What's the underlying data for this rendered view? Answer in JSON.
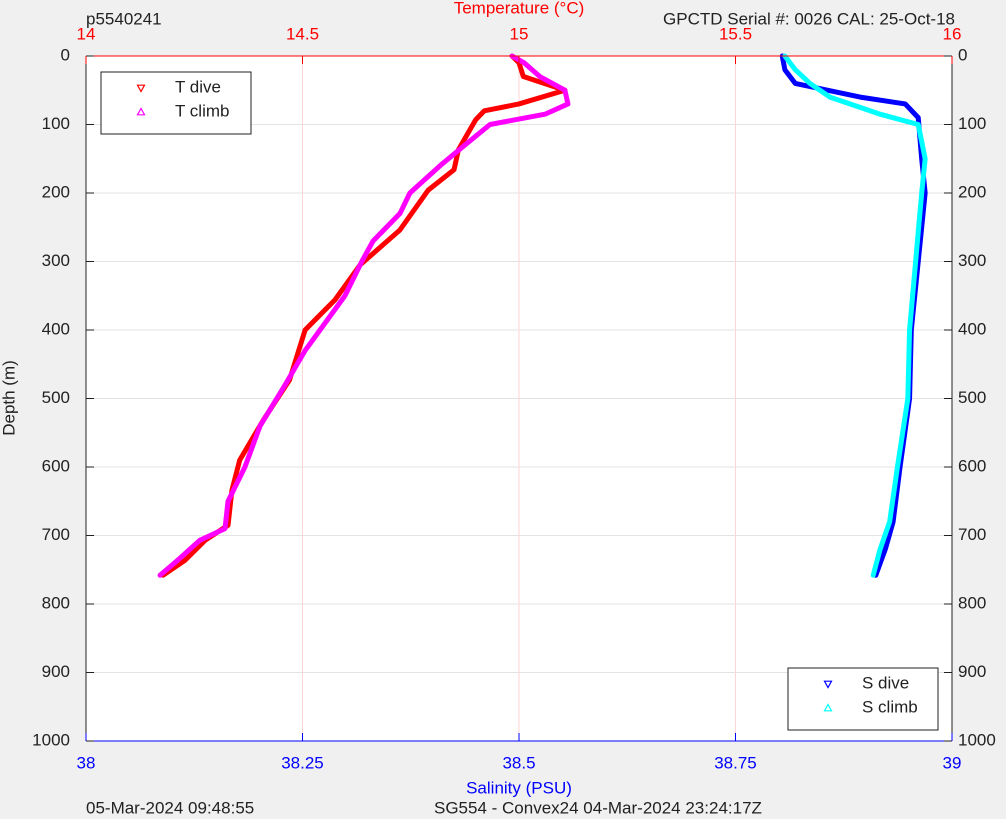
{
  "chart_data": {
    "type": "scatter",
    "title": "p5540241",
    "subtitle": "GPCTD Serial #: 0026 CAL: 25-Oct-18",
    "x_label": "Temperature (°C)",
    "x2_label": "Salinity (PSU)",
    "y_label": "Depth (m)",
    "footer_left": "05-Mar-2024 09:48:55",
    "footer_right": "SG554 - Convex24 04-Mar-2024 23:24:17Z",
    "xlim": [
      14,
      16
    ],
    "xticks": [
      14,
      14.5,
      15,
      15.5,
      16
    ],
    "x_color": "#ff0000",
    "x2lim": [
      38,
      39
    ],
    "x2ticks": [
      38,
      38.25,
      38.5,
      38.75,
      39
    ],
    "x2_color": "#0000ff",
    "ylim": [
      1000,
      0
    ],
    "yticks": [
      0,
      100,
      200,
      300,
      400,
      500,
      600,
      700,
      800,
      900,
      1000
    ],
    "grid": true,
    "series": [
      {
        "name": "T dive",
        "color": "#ff0000",
        "marker": "down",
        "axis": "x",
        "legend": "upper-left",
        "x": [
          14.984,
          15.0,
          15.01,
          15.106,
          15.0,
          14.92,
          14.9,
          14.86,
          14.85,
          14.79,
          14.725,
          14.633,
          14.575,
          14.506,
          14.47,
          14.41,
          14.355,
          14.337,
          14.328,
          14.275,
          14.229,
          14.178
        ],
        "values": [
          0,
          10,
          30,
          50,
          70,
          80,
          93,
          137,
          166,
          196,
          254,
          305,
          356,
          400,
          473,
          531,
          590,
          634,
          685,
          707,
          736,
          758
        ]
      },
      {
        "name": "T climb",
        "color": "#ff00ff",
        "marker": "up",
        "axis": "x",
        "legend": "upper-left",
        "x": [
          14.171,
          14.212,
          14.263,
          14.321,
          14.328,
          14.367,
          14.402,
          14.46,
          14.506,
          14.552,
          14.598,
          14.637,
          14.663,
          14.725,
          14.748,
          14.818,
          14.875,
          14.933,
          15.06,
          15.113,
          15.106,
          15.048,
          15.012,
          14.984
        ],
        "values": [
          758,
          736,
          707,
          690,
          650,
          600,
          540,
          480,
          430,
          390,
          350,
          300,
          270,
          230,
          200,
          160,
          130,
          100,
          85,
          70,
          50,
          30,
          10,
          0
        ]
      },
      {
        "name": "S dive",
        "color": "#0000ff",
        "marker": "down",
        "axis": "x2",
        "legend": "lower-right",
        "x": [
          38.804,
          38.807,
          38.819,
          38.894,
          38.946,
          38.961,
          38.965,
          38.969,
          38.965,
          38.961,
          38.953,
          38.951,
          38.94,
          38.932,
          38.923,
          38.912
        ],
        "values": [
          0,
          20,
          40,
          60,
          70,
          90,
          150,
          200,
          250,
          300,
          400,
          500,
          600,
          680,
          720,
          758
        ]
      },
      {
        "name": "S climb",
        "color": "#00ffff",
        "marker": "up",
        "axis": "x2",
        "legend": "lower-right",
        "x": [
          38.909,
          38.917,
          38.928,
          38.937,
          38.949,
          38.951,
          38.958,
          38.965,
          38.969,
          38.961,
          38.917,
          38.894,
          38.859,
          38.836,
          38.819,
          38.807
        ],
        "values": [
          758,
          720,
          680,
          600,
          500,
          400,
          300,
          200,
          150,
          100,
          85,
          75,
          60,
          40,
          20,
          0
        ]
      }
    ]
  }
}
